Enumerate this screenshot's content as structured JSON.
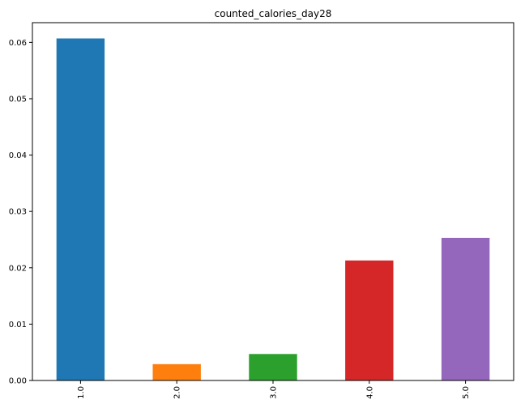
{
  "chart_data": {
    "type": "bar",
    "title": "counted_calories_day28",
    "xlabel": "",
    "ylabel": "",
    "categories": [
      "1.0",
      "2.0",
      "3.0",
      "4.0",
      "5.0"
    ],
    "values": [
      0.0607,
      0.0029,
      0.0047,
      0.0213,
      0.0253
    ],
    "colors": [
      "#1f77b4",
      "#ff7f0e",
      "#2ca02c",
      "#d62728",
      "#9467bd"
    ],
    "ylim": [
      0,
      0.0635
    ],
    "yticks": [
      0.0,
      0.01,
      0.02,
      0.03,
      0.04,
      0.05,
      0.06
    ],
    "ytick_labels": [
      "0.00",
      "0.01",
      "0.02",
      "0.03",
      "0.04",
      "0.05",
      "0.06"
    ],
    "grid": false,
    "xtick_rotation": "vertical"
  }
}
